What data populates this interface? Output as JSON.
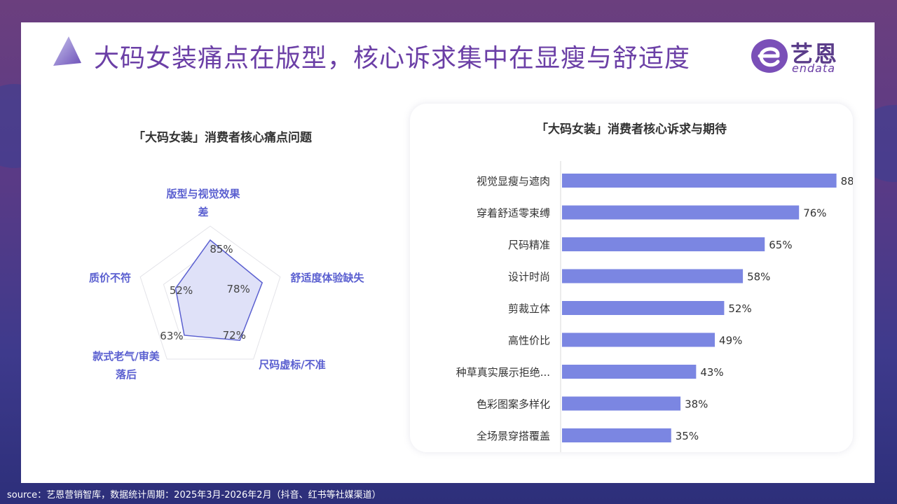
{
  "page": {
    "title": "大码女装痛点在版型，核心诉求集中在显瘦与舒适度",
    "footer": "source：艺恩营销智库，数据统计周期：2025年3月-2026年2月（抖音、红书等社媒渠道）"
  },
  "logo": {
    "name": "艺恩",
    "sub": "endata"
  },
  "colors": {
    "accent": "#6b3fa6",
    "bar": "#7b86e2",
    "radar_fill": "#dfe1f8",
    "radar_line": "#5a5fd0"
  },
  "chart_data": [
    {
      "type": "radar",
      "title": "「大码女装」消费者核心痛点问题",
      "categories": [
        "版型与视觉效果差",
        "舒适度体验缺失",
        "尺码虚标/不准",
        "款式老气/审美落后",
        "质价不符"
      ],
      "values": [
        85,
        78,
        72,
        63,
        52
      ],
      "value_labels": [
        "85%",
        "78%",
        "72%",
        "63%",
        "52%"
      ],
      "label_lines": [
        [
          "版型与视觉效果",
          "差"
        ],
        [
          "舒适度体验缺失"
        ],
        [
          "尺码虚标/不准"
        ],
        [
          "款式老气/审美",
          "落后"
        ],
        [
          "质价不符"
        ]
      ],
      "max": 100,
      "grid": true
    },
    {
      "type": "bar",
      "orientation": "horizontal",
      "title": "「大码女装」消费者核心诉求与期待",
      "categories": [
        "视觉显瘦与遮肉",
        "穿着舒适零束缚",
        "尺码精准",
        "设计时尚",
        "剪裁立体",
        "高性价比",
        "种草真实展示拒绝...",
        "色彩图案多样化",
        "全场景穿搭覆盖"
      ],
      "values": [
        88,
        76,
        65,
        58,
        52,
        49,
        43,
        38,
        35
      ],
      "value_labels": [
        "88%",
        "76%",
        "65%",
        "58%",
        "52%",
        "49%",
        "43%",
        "38%",
        "35%"
      ],
      "xlim": [
        0,
        100
      ]
    }
  ]
}
